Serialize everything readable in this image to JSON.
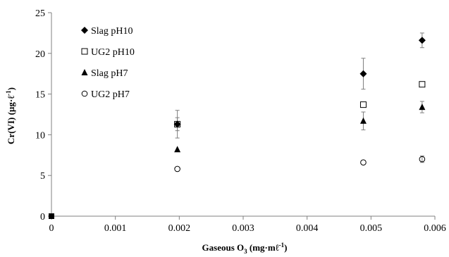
{
  "chart_data": {
    "type": "scatter",
    "xlabel": "Gaseous O3 (mg·mℓ-1)",
    "xlabel_parts": {
      "base": "Gaseous O",
      "sub": "3",
      "rest": " (mg·mℓ",
      "sup": "-1",
      "end": ")"
    },
    "ylabel": "Cr(VI) (µg·ℓ-1)",
    "ylabel_parts": {
      "base": "Cr(VI) (µg·ℓ",
      "sup": "-1",
      "end": ")"
    },
    "xlim": [
      0,
      0.006
    ],
    "ylim": [
      0,
      25
    ],
    "xticks": [
      "0",
      "0.001",
      "0.002",
      "0.003",
      "0.004",
      "0.005",
      "0.006"
    ],
    "yticks": [
      "0",
      "5",
      "10",
      "15",
      "20",
      "25"
    ],
    "grid": false,
    "legend_position": "top-left",
    "series": [
      {
        "name": "Slag pH10",
        "marker": "diamond",
        "color": "#000000",
        "x": [
          0,
          0.00197,
          0.00488,
          0.0058
        ],
        "y": [
          0,
          11.3,
          17.5,
          21.6
        ],
        "err": [
          0,
          1.7,
          1.9,
          0.9
        ]
      },
      {
        "name": "UG2 pH10",
        "marker": "square-open",
        "color": "#000000",
        "x": [
          0,
          0.00197,
          0.00488,
          0.0058
        ],
        "y": [
          0,
          11.3,
          13.7,
          16.2
        ],
        "err": [
          0,
          0.8,
          0,
          0
        ]
      },
      {
        "name": "Slag pH7",
        "marker": "triangle",
        "color": "#000000",
        "x": [
          0,
          0.00197,
          0.00488,
          0.0058
        ],
        "y": [
          0,
          8.2,
          11.7,
          13.4
        ],
        "err": [
          0,
          0,
          1.1,
          0.7
        ]
      },
      {
        "name": "UG2 pH7",
        "marker": "circle-open",
        "color": "#000000",
        "x": [
          0,
          0.00197,
          0.00488,
          0.0058
        ],
        "y": [
          0,
          5.8,
          6.6,
          7.0
        ],
        "err": [
          0,
          0,
          0,
          0.4
        ]
      }
    ]
  }
}
